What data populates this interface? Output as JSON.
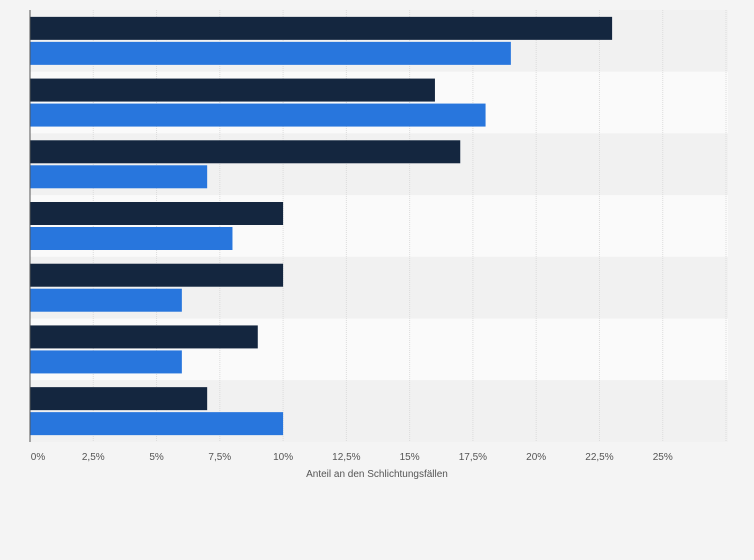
{
  "chart_data": {
    "type": "bar",
    "orientation": "horizontal",
    "categories": [
      "",
      "",
      "",
      "",
      "",
      "",
      ""
    ],
    "series": [
      {
        "values": [
          23,
          16,
          17,
          10,
          10,
          9,
          7
        ]
      },
      {
        "values": [
          19,
          18,
          7,
          8,
          6,
          6,
          10
        ]
      }
    ],
    "xlim": [
      0,
      27.5
    ],
    "xticks": [
      0,
      2.5,
      5,
      7.5,
      10,
      12.5,
      15,
      17.5,
      20,
      22.5,
      25
    ],
    "xtick_labels": [
      "0%",
      "2,5%",
      "5%",
      "7,5%",
      "10%",
      "12,5%",
      "15%",
      "17,5%",
      "20%",
      "22,5%",
      "25%"
    ],
    "xlabel": "Anteil an den Schlichtungsfällen",
    "grid": true,
    "colors": {
      "series": [
        "#14263f",
        "#2876dd"
      ],
      "band_light": "#fafafa",
      "band_dark": "#f1f1f1",
      "grid": "#dcdcdc",
      "axis": "#555555"
    }
  }
}
